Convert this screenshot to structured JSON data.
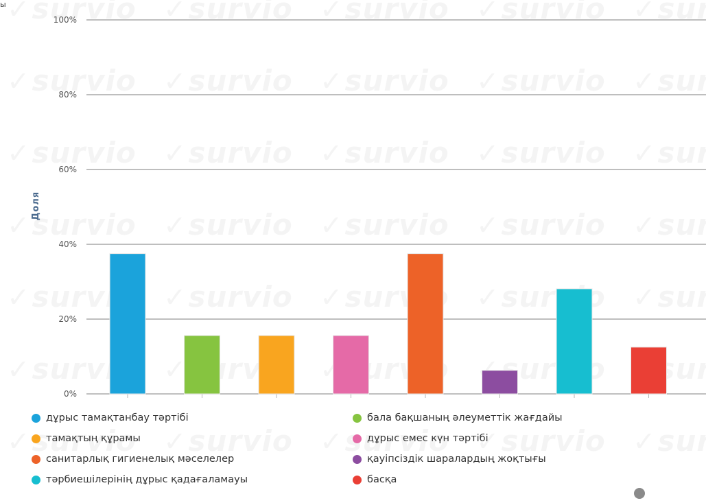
{
  "corner_fragment": "ы",
  "watermark": {
    "text": "survio"
  },
  "chart_data": {
    "type": "bar",
    "ylabel": "Доля",
    "ylim": [
      0,
      100
    ],
    "yticks": [
      0,
      20,
      40,
      60,
      80,
      100
    ],
    "ytick_labels": [
      "0%",
      "20%",
      "40%",
      "60%",
      "80%",
      "100%"
    ],
    "grid": true,
    "legend_position": "bottom",
    "categories": [
      "дұрыс тамақтанбау тәртібі",
      "бала бақшаның әлеуметтік жағдайы",
      "тамақтың құрамы",
      "дұрыс емес күн тәртібі",
      "санитарлық гигиенелық мәселелер",
      "қауіпсіздік шаралардың жоқтығы",
      "тәрбиешілерінің дұрыс қадағаламауы",
      "басқа"
    ],
    "values": [
      37.5,
      15.6,
      15.6,
      15.6,
      37.5,
      6.3,
      28.1,
      12.5
    ],
    "colors": [
      "#1ba3db",
      "#86c440",
      "#f9a51f",
      "#e56aa7",
      "#ed6228",
      "#8c4da0",
      "#17bed0",
      "#ea3f35"
    ]
  },
  "legend": {
    "items": [
      {
        "label": "дұрыс тамақтанбау тәртібі",
        "color": "#1ba3db"
      },
      {
        "label": "бала бақшаның әлеуметтік жағдайы",
        "color": "#86c440"
      },
      {
        "label": "тамақтың құрамы",
        "color": "#f9a51f"
      },
      {
        "label": "дұрыс емес күн тәртібі",
        "color": "#e56aa7"
      },
      {
        "label": "санитарлық гигиенелық мәселелер",
        "color": "#ed6228"
      },
      {
        "label": "қауіпсіздік шаралардың жоқтығы",
        "color": "#8c4da0"
      },
      {
        "label": "тәрбиешілерінің дұрыс қадағаламауы",
        "color": "#17bed0"
      },
      {
        "label": "басқа",
        "color": "#ea3f35"
      }
    ]
  }
}
